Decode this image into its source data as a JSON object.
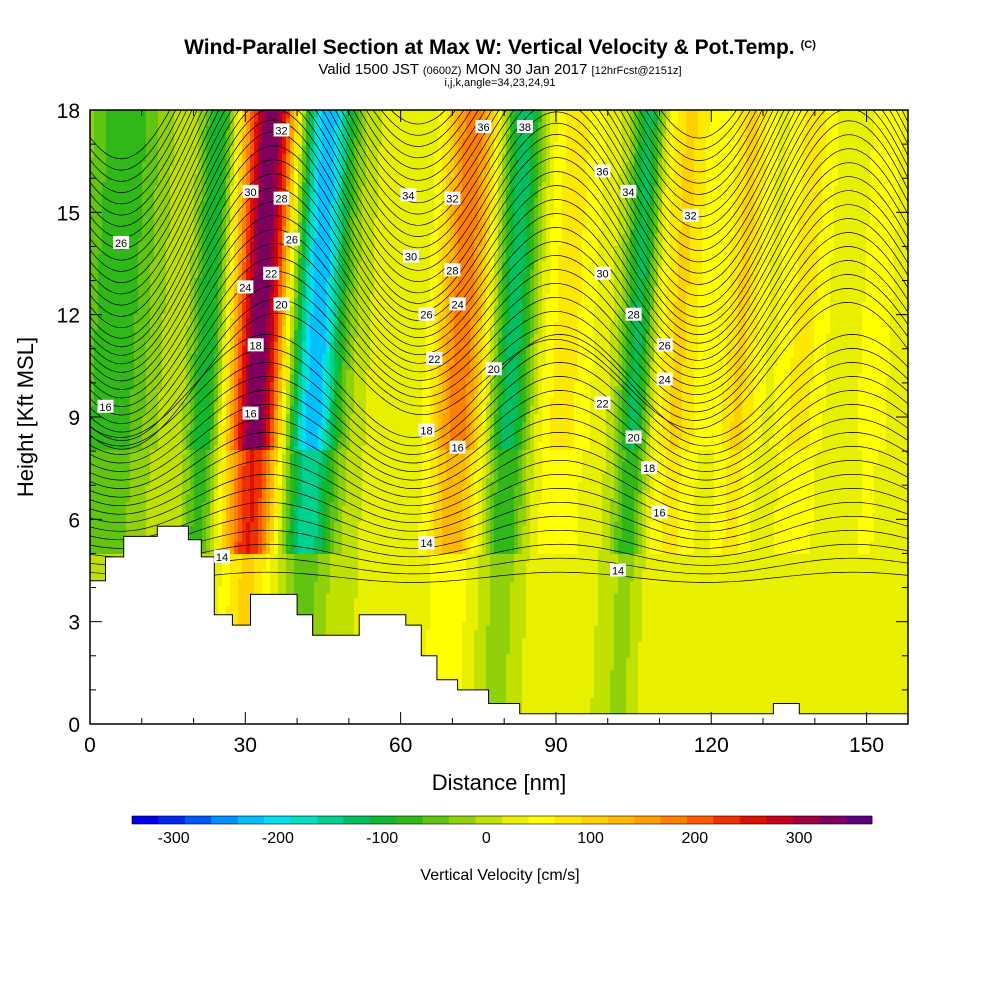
{
  "title": {
    "main": "Wind-Parallel Section at Max W: Vertical Velocity & Pot.Temp.",
    "copyright": "(C)",
    "valid_prefix": "Valid 1500 JST",
    "valid_utc": "(0600Z)",
    "valid_date": "MON 30 Jan 2017",
    "forecast": "[12hrFcst@2151z]",
    "indices": "i,j,k,angle=34,23,24,91"
  },
  "chart_data": {
    "type": "heatmap",
    "xlabel": "Distance [nm]",
    "ylabel": "Height [Kft MSL]",
    "xlim": [
      0,
      158
    ],
    "ylim": [
      0,
      18
    ],
    "x_ticks": [
      0,
      30,
      60,
      90,
      120,
      150
    ],
    "y_ticks": [
      0,
      3,
      6,
      9,
      12,
      15,
      18
    ],
    "colorbar": {
      "label": "Vertical Velocity [cm/s]",
      "ticks": [
        -300,
        -200,
        -100,
        0,
        100,
        200,
        300
      ],
      "range": [
        -340,
        370
      ],
      "colors": [
        "#0000e8",
        "#0028f0",
        "#0058f8",
        "#0090ff",
        "#00c0ff",
        "#00e0f0",
        "#00e0c0",
        "#00d090",
        "#00c060",
        "#10b830",
        "#30b818",
        "#60c410",
        "#90d00c",
        "#c0e000",
        "#e8f000",
        "#ffff00",
        "#ffe800",
        "#ffd000",
        "#ffb800",
        "#ffa000",
        "#ff8000",
        "#ff5800",
        "#f03000",
        "#e01000",
        "#c80020",
        "#a00040",
        "#800060",
        "#600080"
      ]
    },
    "velocity_columns": [
      {
        "x": 3,
        "w": 8,
        "peak": -95
      },
      {
        "x": 21,
        "w": 3,
        "peak": -130
      },
      {
        "x": 31,
        "w": 5,
        "peak": 330
      },
      {
        "x": 42,
        "w": 5,
        "peak": -250
      },
      {
        "x": 56,
        "w": 4,
        "peak": 10
      },
      {
        "x": 70,
        "w": 5,
        "peak": 170
      },
      {
        "x": 80,
        "w": 4,
        "peak": -150
      },
      {
        "x": 90,
        "w": 6,
        "peak": 60
      },
      {
        "x": 104,
        "w": 3,
        "peak": -140
      },
      {
        "x": 112,
        "w": 5,
        "peak": 80
      },
      {
        "x": 124,
        "w": 4,
        "peak": 80
      },
      {
        "x": 136,
        "w": 5,
        "peak": 60
      },
      {
        "x": 150,
        "w": 4,
        "peak": 40
      }
    ],
    "terrain": [
      {
        "x": 0,
        "h": 4.2
      },
      {
        "x": 3,
        "h": 4.9
      },
      {
        "x": 6.5,
        "h": 5.5
      },
      {
        "x": 13,
        "h": 5.8
      },
      {
        "x": 19,
        "h": 5.4
      },
      {
        "x": 21.5,
        "h": 4.9
      },
      {
        "x": 24,
        "h": 3.2
      },
      {
        "x": 27.5,
        "h": 2.9
      },
      {
        "x": 31,
        "h": 3.8
      },
      {
        "x": 40,
        "h": 3.2
      },
      {
        "x": 43,
        "h": 2.6
      },
      {
        "x": 52,
        "h": 3.2
      },
      {
        "x": 61,
        "h": 2.9
      },
      {
        "x": 64,
        "h": 2.0
      },
      {
        "x": 67,
        "h": 1.3
      },
      {
        "x": 71,
        "h": 1.0
      },
      {
        "x": 77,
        "h": 0.6
      },
      {
        "x": 83,
        "h": 0.3
      },
      {
        "x": 90,
        "h": 0.3
      },
      {
        "x": 126,
        "h": 0.3
      },
      {
        "x": 132,
        "h": 0.6
      },
      {
        "x": 137,
        "h": 0.3
      },
      {
        "x": 158,
        "h": 0.3
      }
    ],
    "contour_labels": [
      {
        "text": "32",
        "x": 37,
        "y": 17.4
      },
      {
        "text": "30",
        "x": 31,
        "y": 15.6
      },
      {
        "text": "28",
        "x": 37,
        "y": 15.4
      },
      {
        "text": "26",
        "x": 39,
        "y": 14.2
      },
      {
        "text": "24",
        "x": 30,
        "y": 12.8
      },
      {
        "text": "22",
        "x": 35,
        "y": 13.2
      },
      {
        "text": "20",
        "x": 37,
        "y": 12.3
      },
      {
        "text": "18",
        "x": 32,
        "y": 11.1
      },
      {
        "text": "16",
        "x": 31,
        "y": 9.1
      },
      {
        "text": "14",
        "x": 25.5,
        "y": 4.9
      },
      {
        "text": "26",
        "x": 6,
        "y": 14.1
      },
      {
        "text": "16",
        "x": 3,
        "y": 9.3
      },
      {
        "text": "34",
        "x": 61.5,
        "y": 15.5
      },
      {
        "text": "32",
        "x": 70,
        "y": 15.4
      },
      {
        "text": "30",
        "x": 62,
        "y": 13.7
      },
      {
        "text": "28",
        "x": 70,
        "y": 13.3
      },
      {
        "text": "26",
        "x": 65,
        "y": 12.0
      },
      {
        "text": "24",
        "x": 71,
        "y": 12.3
      },
      {
        "text": "22",
        "x": 66.5,
        "y": 10.7
      },
      {
        "text": "20",
        "x": 78,
        "y": 10.4
      },
      {
        "text": "18",
        "x": 65,
        "y": 8.6
      },
      {
        "text": "16",
        "x": 71,
        "y": 8.1
      },
      {
        "text": "14",
        "x": 65,
        "y": 5.3
      },
      {
        "text": "36",
        "x": 76,
        "y": 17.5
      },
      {
        "text": "38",
        "x": 84,
        "y": 17.5
      },
      {
        "text": "36",
        "x": 99,
        "y": 16.2
      },
      {
        "text": "34",
        "x": 104,
        "y": 15.6
      },
      {
        "text": "32",
        "x": 116,
        "y": 14.9
      },
      {
        "text": "30",
        "x": 99,
        "y": 13.2
      },
      {
        "text": "28",
        "x": 105,
        "y": 12.0
      },
      {
        "text": "26",
        "x": 111,
        "y": 11.1
      },
      {
        "text": "24",
        "x": 111,
        "y": 10.1
      },
      {
        "text": "22",
        "x": 99,
        "y": 9.4
      },
      {
        "text": "20",
        "x": 105,
        "y": 8.4
      },
      {
        "text": "18",
        "x": 108,
        "y": 7.5
      },
      {
        "text": "16",
        "x": 110,
        "y": 6.2
      },
      {
        "text": "14",
        "x": 102,
        "y": 4.5
      }
    ]
  }
}
